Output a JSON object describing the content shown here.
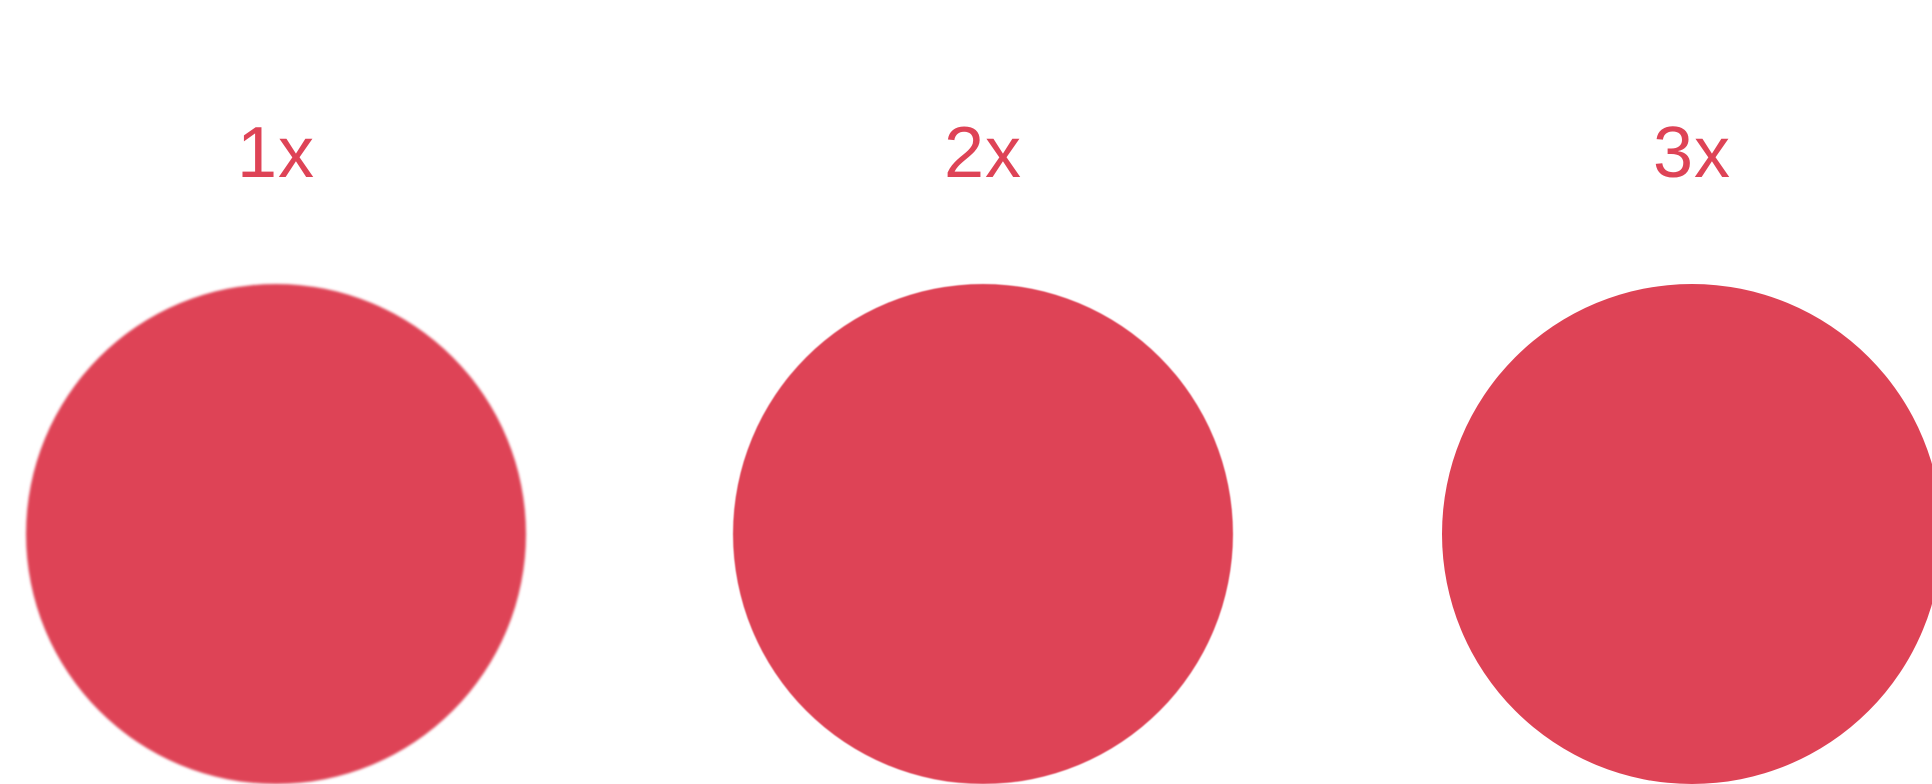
{
  "accent_color": "#de4356",
  "items": [
    {
      "label": "1x",
      "shape": "circle"
    },
    {
      "label": "2x",
      "shape": "circle"
    },
    {
      "label": "3x",
      "shape": "circle"
    }
  ]
}
